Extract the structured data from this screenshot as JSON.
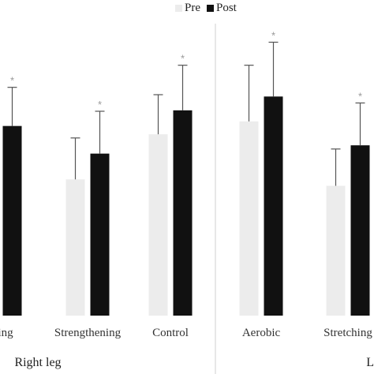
{
  "legend": {
    "pre_label": "Pre",
    "post_label": "Post"
  },
  "colors": {
    "pre": "#ececec",
    "post": "#111111",
    "error": "#555555",
    "star": "#9a9a9a",
    "divider": "#cfcfcf"
  },
  "chart_data": {
    "type": "bar",
    "title": "",
    "xlabel": "",
    "ylabel": "",
    "ylim": [
      0,
      30
    ],
    "grid": false,
    "legend_position": "top-center",
    "categories": [
      "Stretching",
      "Strengthening",
      "Control",
      "Aerobic",
      "Stretching"
    ],
    "category_tick_labels": [
      "ching",
      "Strengthening",
      "Control",
      "Aerobic",
      "Stretching"
    ],
    "groups": [
      {
        "name": "Right leg",
        "display_label": "Right leg",
        "categories": [
          0,
          1,
          2
        ]
      },
      {
        "name": "Left leg",
        "display_label": "L",
        "categories": [
          3,
          4
        ]
      }
    ],
    "series": [
      {
        "name": "Pre",
        "values": [
          null,
          14.8,
          19.7,
          21.1,
          14.1
        ],
        "errors": [
          null,
          4.5,
          4.3,
          6.1,
          4.0
        ]
      },
      {
        "name": "Post",
        "values": [
          20.6,
          17.6,
          22.3,
          23.8,
          18.5
        ],
        "errors": [
          4.2,
          4.6,
          4.9,
          5.9,
          4.6
        ]
      }
    ],
    "significance": [
      {
        "series": "Post",
        "category": 0,
        "marker": "*"
      },
      {
        "series": "Post",
        "category": 1,
        "marker": "*"
      },
      {
        "series": "Post",
        "category": 2,
        "marker": "*"
      },
      {
        "series": "Post",
        "category": 3,
        "marker": "*"
      },
      {
        "series": "Post",
        "category": 4,
        "marker": "*"
      }
    ]
  }
}
